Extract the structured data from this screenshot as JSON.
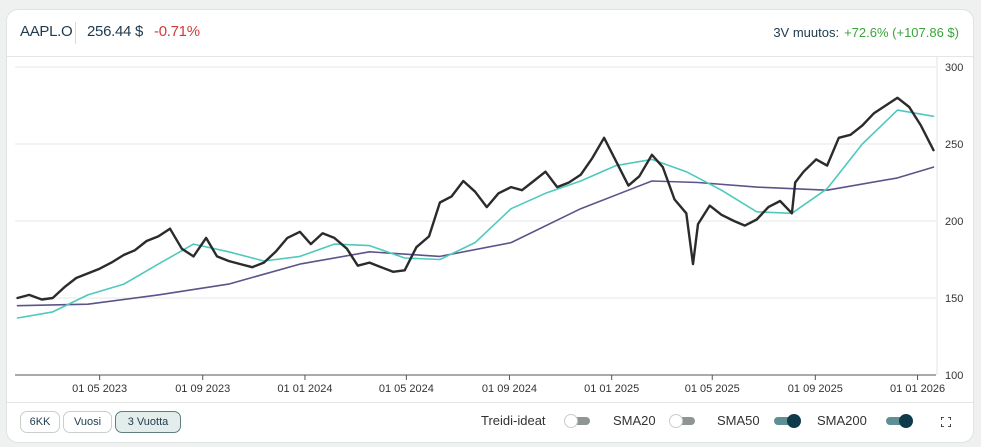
{
  "header": {
    "ticker": "AAPL.O",
    "price": "256.44 $",
    "change": "-0.71%",
    "perf_label": "3V muutos:",
    "perf_value": "+72.6% (+107.86 $)"
  },
  "colors": {
    "price_line": "#2b2b2b",
    "sma50": "#4fc9bd",
    "sma200": "#5c5489",
    "negative": "#d23a3a",
    "positive": "#3aa53a",
    "accent": "#0d3b4b"
  },
  "chart_data": {
    "type": "line",
    "y_axis": {
      "ticks": [
        100,
        150,
        200,
        250,
        300
      ],
      "ylim": [
        100,
        300
      ],
      "side": "right"
    },
    "x_axis": {
      "tick_labels": [
        "01 05 2023",
        "01 09 2023",
        "01 01 2024",
        "01 05 2024",
        "01 09 2024",
        "01 01 2025",
        "01 05 2025",
        "01 09 2025",
        "01 01 2026"
      ],
      "tick_dates": [
        "2023-05-01",
        "2023-09-01",
        "2024-01-01",
        "2024-05-01",
        "2024-09-01",
        "2025-01-01",
        "2025-05-01",
        "2025-09-01",
        "2026-01-01"
      ],
      "xlim": [
        "2023-01-20",
        "2026-01-23"
      ]
    },
    "grid": true,
    "series": [
      {
        "key": "price",
        "x": [
          "2023-01-23",
          "2023-02-06",
          "2023-02-21",
          "2023-03-06",
          "2023-03-20",
          "2023-04-03",
          "2023-04-17",
          "2023-05-01",
          "2023-05-15",
          "2023-05-30",
          "2023-06-12",
          "2023-06-26",
          "2023-07-10",
          "2023-07-24",
          "2023-08-07",
          "2023-08-21",
          "2023-09-05",
          "2023-09-18",
          "2023-10-02",
          "2023-10-16",
          "2023-10-30",
          "2023-11-13",
          "2023-11-27",
          "2023-12-11",
          "2023-12-26",
          "2024-01-08",
          "2024-01-22",
          "2024-02-05",
          "2024-02-20",
          "2024-03-04",
          "2024-03-18",
          "2024-04-01",
          "2024-04-15",
          "2024-04-29",
          "2024-05-13",
          "2024-05-28",
          "2024-06-10",
          "2024-06-24",
          "2024-07-08",
          "2024-07-22",
          "2024-08-05",
          "2024-08-19",
          "2024-09-03",
          "2024-09-16",
          "2024-09-30",
          "2024-10-14",
          "2024-10-28",
          "2024-11-11",
          "2024-11-25",
          "2024-12-09",
          "2024-12-23",
          "2025-01-06",
          "2025-01-21",
          "2025-02-03",
          "2025-02-18",
          "2025-03-03",
          "2025-03-17",
          "2025-03-31",
          "2025-04-08",
          "2025-04-14",
          "2025-04-28",
          "2025-05-12",
          "2025-05-27",
          "2025-06-09",
          "2025-06-23",
          "2025-07-07",
          "2025-07-21",
          "2025-08-04",
          "2025-08-08",
          "2025-08-18",
          "2025-09-02",
          "2025-09-15",
          "2025-09-29",
          "2025-10-13",
          "2025-10-27",
          "2025-11-10",
          "2025-11-24",
          "2025-12-08",
          "2025-12-22",
          "2026-01-05",
          "2026-01-20"
        ],
        "values": [
          150,
          152,
          149,
          150,
          157,
          163,
          166,
          169,
          173,
          178,
          181,
          187,
          190,
          195,
          182,
          177,
          189,
          177,
          174,
          172,
          170,
          173,
          180,
          189,
          193,
          185,
          192,
          189,
          182,
          171,
          173,
          170,
          167,
          168,
          183,
          190,
          212,
          216,
          226,
          219,
          209,
          218,
          222,
          220,
          226,
          232,
          222,
          225,
          230,
          241,
          254,
          239,
          223,
          229,
          243,
          235,
          214,
          205,
          172,
          198,
          210,
          204,
          200,
          197,
          201,
          209,
          213,
          205,
          225,
          232,
          240,
          236,
          254,
          256,
          262,
          270,
          275,
          280,
          274,
          262,
          246
        ]
      },
      {
        "key": "sma50",
        "x": [
          "2023-01-23",
          "2023-03-06",
          "2023-04-17",
          "2023-05-30",
          "2023-07-10",
          "2023-08-21",
          "2023-10-02",
          "2023-11-13",
          "2023-12-26",
          "2024-02-05",
          "2024-03-18",
          "2024-04-29",
          "2024-06-10",
          "2024-07-22",
          "2024-09-03",
          "2024-10-14",
          "2024-11-25",
          "2025-01-06",
          "2025-02-18",
          "2025-03-31",
          "2025-05-12",
          "2025-06-23",
          "2025-08-04",
          "2025-09-15",
          "2025-10-27",
          "2025-12-08",
          "2026-01-20"
        ],
        "values": [
          137,
          141,
          152,
          159,
          172,
          185,
          180,
          174,
          177,
          185,
          184,
          176,
          175,
          186,
          208,
          218,
          226,
          236,
          240,
          232,
          220,
          206,
          205,
          221,
          250,
          272,
          268
        ]
      },
      {
        "key": "sma200",
        "x": [
          "2023-01-23",
          "2023-04-17",
          "2023-07-10",
          "2023-10-02",
          "2023-12-26",
          "2024-03-18",
          "2024-06-10",
          "2024-09-03",
          "2024-11-25",
          "2025-02-18",
          "2025-04-14",
          "2025-06-23",
          "2025-09-15",
          "2025-12-08",
          "2026-01-20"
        ],
        "values": [
          145,
          146,
          152,
          159,
          172,
          180,
          177,
          186,
          208,
          226,
          225,
          222,
          220,
          228,
          235
        ]
      }
    ]
  },
  "footer": {
    "ranges": [
      "6KK",
      "Vuosi",
      "3 Vuotta"
    ],
    "active_range": "3 Vuotta",
    "toggles": [
      {
        "label": "Treidi-ideat",
        "on": false
      },
      {
        "label": "SMA20",
        "on": false
      },
      {
        "label": "SMA50",
        "on": true
      },
      {
        "label": "SMA200",
        "on": true
      }
    ],
    "fullscreen_icon": "fullscreen-icon"
  }
}
